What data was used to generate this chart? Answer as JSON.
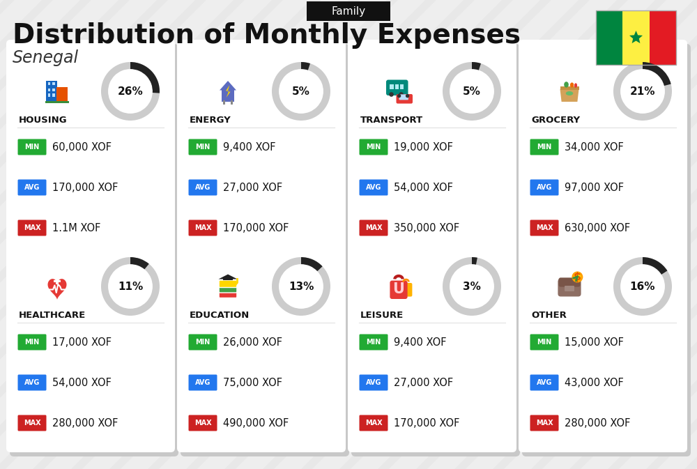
{
  "title": "Distribution of Monthly Expenses",
  "subtitle": "Senegal",
  "header_tag": "Family",
  "bg_color": "#eeeeee",
  "categories": [
    {
      "name": "HOUSING",
      "pct": 26,
      "min": "60,000 XOF",
      "avg": "170,000 XOF",
      "max": "1.1M XOF",
      "row": 0,
      "col": 0
    },
    {
      "name": "ENERGY",
      "pct": 5,
      "min": "9,400 XOF",
      "avg": "27,000 XOF",
      "max": "170,000 XOF",
      "row": 0,
      "col": 1
    },
    {
      "name": "TRANSPORT",
      "pct": 5,
      "min": "19,000 XOF",
      "avg": "54,000 XOF",
      "max": "350,000 XOF",
      "row": 0,
      "col": 2
    },
    {
      "name": "GROCERY",
      "pct": 21,
      "min": "34,000 XOF",
      "avg": "97,000 XOF",
      "max": "630,000 XOF",
      "row": 0,
      "col": 3
    },
    {
      "name": "HEALTHCARE",
      "pct": 11,
      "min": "17,000 XOF",
      "avg": "54,000 XOF",
      "max": "280,000 XOF",
      "row": 1,
      "col": 0
    },
    {
      "name": "EDUCATION",
      "pct": 13,
      "min": "26,000 XOF",
      "avg": "75,000 XOF",
      "max": "490,000 XOF",
      "row": 1,
      "col": 1
    },
    {
      "name": "LEISURE",
      "pct": 3,
      "min": "9,400 XOF",
      "avg": "27,000 XOF",
      "max": "170,000 XOF",
      "row": 1,
      "col": 2
    },
    {
      "name": "OTHER",
      "pct": 16,
      "min": "15,000 XOF",
      "avg": "43,000 XOF",
      "max": "280,000 XOF",
      "row": 1,
      "col": 3
    }
  ],
  "min_color": "#22aa33",
  "avg_color": "#2277ee",
  "max_color": "#cc2222",
  "arc_dark": "#222222",
  "arc_light": "#cccccc",
  "senegal_colors": [
    "#00853F",
    "#FDEF42",
    "#E31B23"
  ],
  "card_bg": "#ffffff",
  "shadow_color": "#cccccc",
  "icon_chars": {
    "HOUSING": "🏗",
    "ENERGY": "⚡",
    "TRANSPORT": "🚌",
    "GROCERY": "🛒",
    "HEALTHCARE": "💗",
    "EDUCATION": "🎓",
    "LEISURE": "🛍",
    "OTHER": "👜"
  }
}
